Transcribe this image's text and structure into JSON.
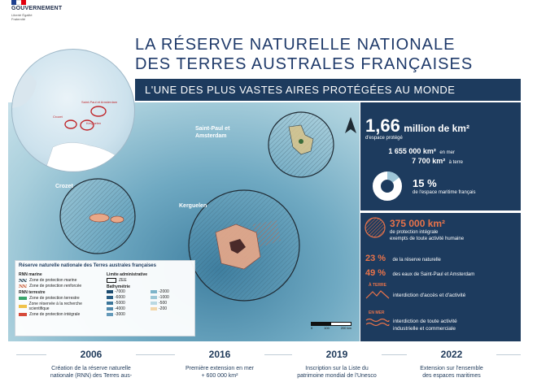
{
  "header": {
    "flag_colors": [
      "#1e3f8f",
      "#ffffff",
      "#e1000f"
    ],
    "gov_name": "GOUVERNEMENT",
    "motto": "Liberté Égalité Fraternité"
  },
  "title_line1": "LA RÉSERVE NATURELLE NATIONALE",
  "title_line2": "DES TERRES AUSTRALES FRANÇAISES",
  "subtitle": "L'UNE DES PLUS VASTES AIRES PROTÉGÉES AU MONDE",
  "map": {
    "label_stpaul": "Saint-Paul et Amsterdam",
    "label_crozet": "Crozet",
    "label_kerguelen": "Kerguelen",
    "globe_label_stpaul": "Saint-Paul et Amsterdam",
    "globe_label_crozet": "Crozet",
    "globe_label_kerguelen": "Kerguelen",
    "scale_labels": [
      "0",
      "100",
      "200 km"
    ],
    "north_icon": "north-arrow-icon"
  },
  "legend": {
    "title": "Réserve naturelle nationale des Terres australes françaises",
    "rnn_marine": "RNN marine",
    "marine_items": [
      "Zone de protection marine",
      "Zone de protection renforcée"
    ],
    "rnn_terrestre": "RNN terrestre",
    "terrestre_items": [
      "Zone de protection terrestre",
      "Zone réservée à la recherche scientifique",
      "Zone de protection intégrale"
    ],
    "limite": "Limite administrative",
    "limite_item": "ZEE",
    "bathy": "Bathymétrie",
    "bathy_values": [
      "-7000",
      "-6000",
      "-5000",
      "-4000",
      "-3000",
      "-2000",
      "-1000",
      "-500",
      "-200"
    ]
  },
  "stats": {
    "area_value": "1,66",
    "area_unit": "million de km²",
    "area_caption": "d'espace protégé",
    "sea_value": "1 655 000 km²",
    "sea_caption": "en mer",
    "land_value": "7 700 km²",
    "land_caption": "à terre",
    "share_value": "15 %",
    "share_fraction": 0.15,
    "share_caption": "de l'espace maritime français",
    "integral_value": "375 000 km²",
    "integral_caption1": "de protection intégrale",
    "integral_caption2": "exempts de toute activité humaine",
    "pct1_value": "23 %",
    "pct1_caption": "de la réserve naturelle",
    "pct2_value": "49 %",
    "pct2_caption": "des eaux de Saint-Paul et Amsterdam",
    "land_rule_label": "À TERRE",
    "land_rule_text": "interdiction d'accès et d'activité",
    "sea_rule_label": "EN MER",
    "sea_rule_text1": "interdiction de toute activité",
    "sea_rule_text2": "industrielle et commerciale"
  },
  "timeline": [
    {
      "year": "2006",
      "text1": "Création de la réserve naturelle",
      "text2": "nationale (RNN) des Terres aus-"
    },
    {
      "year": "2016",
      "text1": "Première extension en mer",
      "text2": "+ 600 000 km²"
    },
    {
      "year": "2019",
      "text1": "Inscription sur la Liste du",
      "text2": "patrimoine mondial de l'Unesco"
    },
    {
      "year": "2022",
      "text1": "Extension sur l'ensemble",
      "text2": "des espaces maritimes"
    }
  ],
  "colors": {
    "navy": "#1d3b5e",
    "accent": "#e8734a",
    "title": "#1f3a6a"
  }
}
